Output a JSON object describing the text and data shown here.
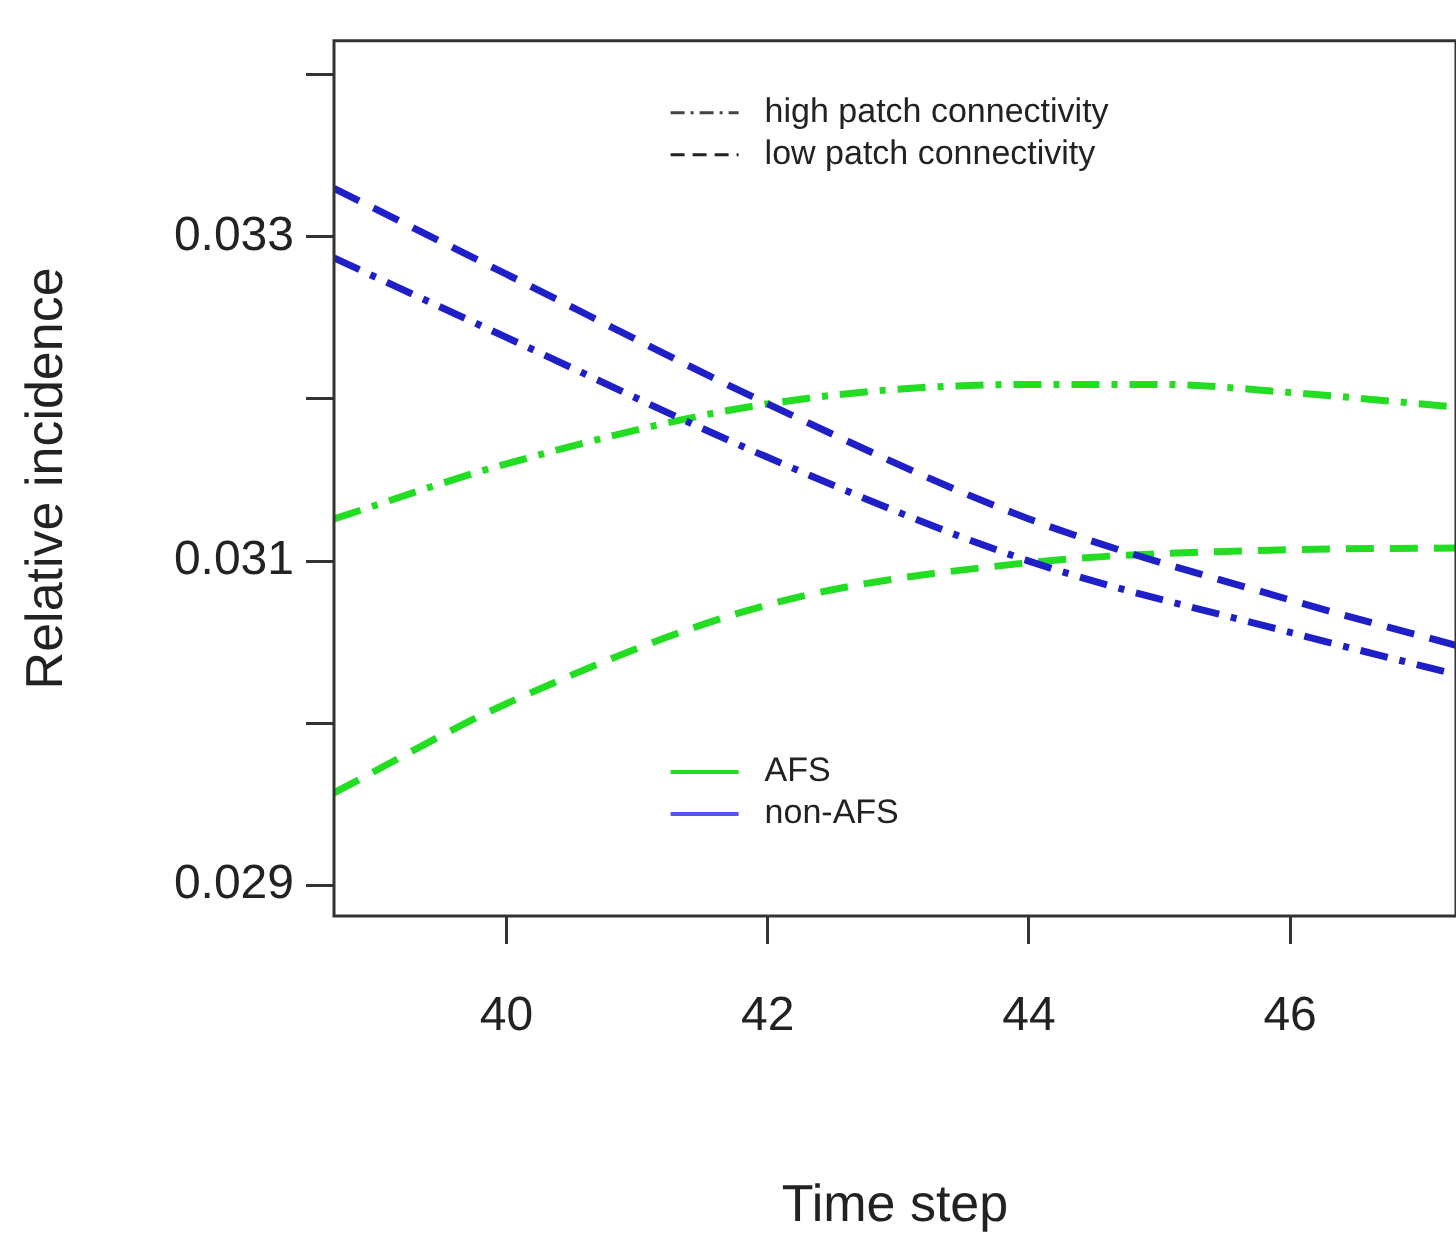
{
  "chart_data": {
    "type": "line",
    "xlabel": "Time step",
    "ylabel": "Relative incidence",
    "xlim": [
      38.68,
      47.27
    ],
    "xticks": [
      40,
      42,
      44,
      46
    ],
    "ylim": [
      0.02881,
      0.03421
    ],
    "yticks": [
      {
        "value": 0.029,
        "label": "0.029"
      },
      {
        "value": 0.03,
        "label": null
      },
      {
        "value": 0.031,
        "label": "0.031"
      },
      {
        "value": 0.032,
        "label": null
      },
      {
        "value": 0.033,
        "label": "0.033"
      },
      {
        "value": 0.034,
        "label": null
      }
    ],
    "legend": "top",
    "marker": "none",
    "series": [
      {
        "color": "#1f1fc8",
        "line_style": "dashed",
        "x": [
          38.68,
          40,
          42,
          44,
          46,
          47.27
        ],
        "values": [
          0.0333,
          0.03277,
          0.03197,
          0.03126,
          0.03076,
          0.03048
        ]
      },
      {
        "color": "#1f1fc8",
        "line_style": "dashdot",
        "x": [
          38.68,
          40,
          42,
          44,
          46,
          47.27
        ],
        "values": [
          0.03287,
          0.03238,
          0.03164,
          0.031,
          0.03056,
          0.0303
        ]
      },
      {
        "color": "#22dd22",
        "line_style": "dashdot",
        "x": [
          38.68,
          40,
          42,
          44,
          45,
          46,
          47.27
        ],
        "values": [
          0.03126,
          0.0316,
          0.03197,
          0.03209,
          0.03209,
          0.03204,
          0.03195
        ]
      },
      {
        "color": "#22dd22",
        "line_style": "dashed",
        "x": [
          38.68,
          40,
          42,
          44,
          46,
          47.27
        ],
        "values": [
          0.02957,
          0.03012,
          0.03073,
          0.03099,
          0.03107,
          0.03108
        ]
      },
      {
        "name": "high patch connectivity",
        "color": "#444444",
        "line_style": "dashdot"
      },
      {
        "name": "low patch connectivity",
        "color": "#222222",
        "line_style": "dashed"
      },
      {
        "name": "AFS",
        "color": "#22dd22",
        "line_style": "solid"
      },
      {
        "name": "non-AFS",
        "color": "#5555ee",
        "line_style": "solid"
      }
    ]
  }
}
